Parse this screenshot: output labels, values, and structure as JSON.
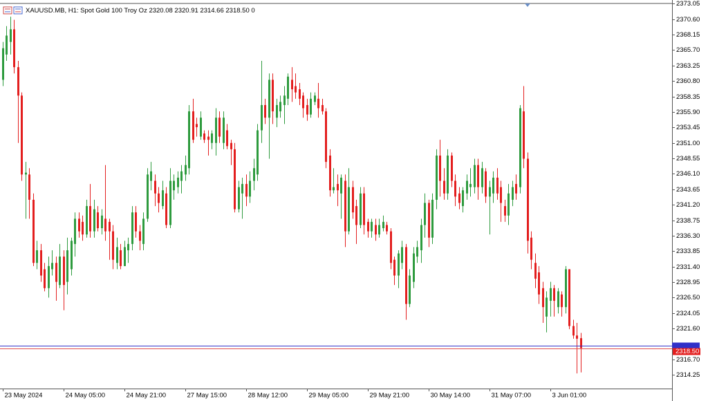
{
  "chart_data": {
    "type": "candlestick",
    "info": "XAUUSD.MB, H1:  Spot Gold 100 Troy Oz  2320.08 2320.91 2314.66 2318.50  0",
    "up_color": "#2e9b3e",
    "down_color": "#e31e1e",
    "ylim": [
      2312.1,
      2373.2
    ],
    "yticks": [
      2373.05,
      {
        "value": 2370.6,
        "label": "2370.60"
      },
      2368.15,
      {
        "value": 2365.7,
        "label": "2365.70"
      },
      2363.25,
      {
        "value": 2360.8,
        "label": "2360.80"
      },
      2358.35,
      {
        "value": 2355.9,
        "label": "2355.90"
      },
      2353.45,
      {
        "value": 2351,
        "label": "2351.00"
      },
      2348.55,
      {
        "value": 2346.1,
        "label": "2346.10"
      },
      2343.65,
      {
        "value": 2341.2,
        "label": "2341.20"
      },
      2338.75,
      {
        "value": 2336.3,
        "label": "2336.30"
      },
      2333.85,
      {
        "value": 2331.4,
        "label": "2331.40"
      },
      2328.95,
      {
        "value": 2326.5,
        "label": "2326.50"
      },
      2324.05,
      {
        "value": 2321.6,
        "label": "2321.60"
      },
      {
        "value": 2316.7,
        "label": "2316.70"
      },
      2314.25
    ],
    "bid": {
      "value": 2318.5,
      "label": "2318.50"
    },
    "ask": 2318.85,
    "categories": [
      "23 May 2024",
      null,
      null,
      null,
      null,
      null,
      null,
      null,
      null,
      null,
      null,
      null,
      null,
      null,
      null,
      null,
      "24 May 05:00",
      null,
      null,
      null,
      null,
      null,
      null,
      null,
      null,
      null,
      null,
      null,
      null,
      null,
      null,
      null,
      "24 May 21:00",
      null,
      null,
      null,
      null,
      null,
      null,
      null,
      null,
      null,
      null,
      null,
      null,
      null,
      null,
      null,
      "27 May 15:00",
      null,
      null,
      null,
      null,
      null,
      null,
      null,
      null,
      null,
      null,
      null,
      null,
      null,
      null,
      null,
      "28 May 12:00",
      null,
      null,
      null,
      null,
      null,
      null,
      null,
      null,
      null,
      null,
      null,
      null,
      null,
      null,
      null,
      "29 May 05:00",
      null,
      null,
      null,
      null,
      null,
      null,
      null,
      null,
      null,
      null,
      null,
      null,
      null,
      null,
      null,
      "29 May 21:00",
      null,
      null,
      null,
      null,
      null,
      null,
      null,
      null,
      null,
      null,
      null,
      null,
      null,
      null,
      null,
      "30 May 14:00",
      null,
      null,
      null,
      null,
      null,
      null,
      null,
      null,
      null,
      null,
      null,
      null,
      null,
      null,
      null,
      "31 May 07:00",
      null,
      null,
      null,
      null,
      null,
      null,
      null,
      null,
      null,
      null,
      null,
      null,
      null,
      null,
      null,
      "3 Jun 01:00",
      null,
      null,
      null,
      null,
      null,
      null,
      null,
      null
    ],
    "open": [
      2361,
      2365,
      2367,
      2369,
      2363,
      2358.5,
      2346,
      2346,
      2342,
      2332,
      2334,
      2331,
      2328,
      2331,
      2332,
      2328.5,
      2333,
      2329,
      2331,
      2335,
      2339,
      2338.5,
      2336.5,
      2341,
      2337,
      2340,
      2337.5,
      2339,
      2338.5,
      2337,
      2332,
      2334,
      2331.5,
      2334,
      2335,
      2340,
      2337,
      2335,
      2339,
      2345,
      2345,
      2343,
      2341,
      2343,
      2338,
      2343.5,
      2344,
      2345,
      2346,
      2347,
      2356,
      2354,
      2352,
      2352.5,
      2352,
      2351,
      2351,
      2355,
      2351,
      2353,
      2351,
      2350,
      2340.5,
      2343,
      2344.5,
      2342.5,
      2345,
      2346,
      2353,
      2357,
      2355,
      2361,
      2355,
      2356,
      2357,
      2358,
      2361,
      2360,
      2359.5,
      2358.5,
      2357,
      2355.5,
      2357.5,
      2358,
      2357,
      2356,
      2349,
      2343.5,
      2344.5,
      2343,
      2345,
      2337,
      2344,
      2341,
      2338,
      2343,
      2338.5,
      2337,
      2338,
      2336.5,
      2337.5,
      2338,
      2337,
      2332.5,
      2330,
      2332,
      2334.5,
      2325.5,
      2329,
      2333,
      2334,
      2338,
      2341.5,
      2336,
      2342,
      2349,
      2345,
      2343,
      2349,
      2345,
      2343,
      2341,
      2343,
      2344,
      2344,
      2347.5,
      2344,
      2346.5,
      2342.5,
      2343,
      2345.5,
      2344,
      2341,
      2339.5,
      2342,
      2344.5,
      2344,
      2356,
      2348.5,
      2336,
      2332,
      2330.5,
      2328,
      2323.5,
      2326,
      2328,
      2325,
      2327,
      2325,
      2331,
      2322,
      2320.5,
      2320.08
    ],
    "high": [
      2367,
      2369.5,
      2371,
      2370.5,
      2364,
      2359,
      2348,
      2347,
      2343,
      2335.5,
      2335,
      2332,
      2333,
      2334,
      2333,
      2335,
      2334,
      2336,
      2336,
      2340,
      2340,
      2339.5,
      2342,
      2344.5,
      2342,
      2341,
      2340.5,
      2347.5,
      2339,
      2338,
      2336,
      2335,
      2335.5,
      2336,
      2341,
      2341,
      2338,
      2340,
      2347,
      2348,
      2346,
      2344,
      2345,
      2344,
      2347,
      2346,
      2346.5,
      2347.5,
      2349,
      2357,
      2358,
      2355,
      2356,
      2353,
      2353,
      2353,
      2356.5,
      2356,
      2356,
      2354,
      2351.5,
      2351,
      2345,
      2345.5,
      2346,
      2346.5,
      2348.5,
      2354,
      2364,
      2358,
      2362,
      2362,
      2358,
      2358.5,
      2360,
      2362,
      2363,
      2362,
      2360.5,
      2359,
      2358,
      2359,
      2359,
      2360.5,
      2358,
      2356.5,
      2350,
      2347,
      2346,
      2346,
      2346,
      2347,
      2345,
      2342,
      2344,
      2344,
      2339,
      2339,
      2339,
      2339,
      2339.5,
      2338.5,
      2337.5,
      2333,
      2334,
      2335.5,
      2335,
      2331,
      2334.5,
      2335.5,
      2339,
      2343,
      2342,
      2343,
      2350,
      2351.5,
      2347,
      2350,
      2349.5,
      2346,
      2344,
      2344,
      2346,
      2347,
      2348.5,
      2348.5,
      2348,
      2347,
      2345,
      2346.5,
      2347,
      2345,
      2342,
      2344.5,
      2345,
      2346,
      2357,
      2360,
      2349.5,
      2337,
      2333.5,
      2331.5,
      2329,
      2327.5,
      2329,
      2328.5,
      2328,
      2327.5,
      2331.5,
      2331,
      2323,
      2322.5,
      2320.91
    ],
    "low": [
      2360,
      2364,
      2365,
      2362,
      2351,
      2345,
      2339,
      2339,
      2331.5,
      2331,
      2329,
      2327.5,
      2326.5,
      2330,
      2326,
      2328,
      2324.5,
      2327,
      2330,
      2333,
      2336,
      2335.5,
      2336,
      2336,
      2336,
      2337,
      2336.5,
      2335.5,
      2332.5,
      2331,
      2331,
      2331,
      2331.5,
      2332,
      2334,
      2336,
      2334,
      2334,
      2338.5,
      2343.5,
      2341,
      2340,
      2340.5,
      2337.5,
      2337.5,
      2342,
      2343,
      2343,
      2345,
      2346,
      2351,
      2352,
      2351.5,
      2351,
      2349,
      2350,
      2349,
      2351,
      2350,
      2350,
      2347.5,
      2340,
      2340,
      2339,
      2341,
      2341.5,
      2343.5,
      2345,
      2351,
      2354,
      2348.5,
      2354,
      2353.5,
      2355,
      2354,
      2357,
      2357.5,
      2358,
      2357,
      2355,
      2354.5,
      2355,
      2357,
      2355,
      2355.5,
      2347,
      2342.5,
      2343,
      2341,
      2339,
      2334.5,
      2336.5,
      2339,
      2335,
      2337.5,
      2336.5,
      2336,
      2336,
      2335.5,
      2336,
      2337,
      2336.5,
      2331,
      2328.5,
      2328,
      2331,
      2323,
      2325,
      2328,
      2332,
      2332,
      2336,
      2334.5,
      2335,
      2340.5,
      2342.5,
      2342,
      2342,
      2344,
      2341,
      2340.5,
      2340,
      2342,
      2342.5,
      2343,
      2342,
      2343,
      2341.5,
      2336.5,
      2341.5,
      2342,
      2338.5,
      2338.5,
      2338,
      2341,
      2342,
      2343,
      2347,
      2333.5,
      2331,
      2328,
      2325.5,
      2322.5,
      2321,
      2323.5,
      2323.5,
      2324,
      2323.5,
      2324,
      2321.5,
      2320,
      2314.5,
      2314.66
    ],
    "close": [
      2366,
      2368,
      2369,
      2363,
      2358.5,
      2346,
      2346.3,
      2342,
      2332,
      2334,
      2330,
      2328,
      2331.5,
      2332,
      2329,
      2333,
      2328.5,
      2334,
      2335.5,
      2339,
      2337,
      2336.5,
      2341,
      2337,
      2340.5,
      2337.5,
      2339.5,
      2337,
      2337,
      2332.5,
      2334.5,
      2331.5,
      2334.5,
      2335,
      2340,
      2337,
      2335.5,
      2339,
      2346,
      2346.5,
      2343,
      2341.5,
      2343.5,
      2338,
      2345,
      2345,
      2345.5,
      2346.5,
      2347.5,
      2356,
      2351.5,
      2353.5,
      2355,
      2351.5,
      2351.5,
      2352.5,
      2355,
      2352,
      2355,
      2350.5,
      2350,
      2340.5,
      2344,
      2344.5,
      2342.5,
      2345,
      2347,
      2353,
      2357,
      2355,
      2361,
      2356,
      2357,
      2357.5,
      2358.5,
      2361.5,
      2359.5,
      2359,
      2358,
      2356.5,
      2355.5,
      2358,
      2358.5,
      2356.5,
      2356,
      2348,
      2343.5,
      2344,
      2343.5,
      2345.5,
      2337,
      2344,
      2340,
      2338,
      2343,
      2338,
      2337,
      2338.5,
      2336.5,
      2338,
      2338.5,
      2337,
      2332,
      2330,
      2333.5,
      2334.5,
      2325.5,
      2330,
      2333.5,
      2334.5,
      2338,
      2341.5,
      2336,
      2342,
      2349,
      2345,
      2343,
      2349,
      2345,
      2342.5,
      2341.5,
      2343.5,
      2345,
      2344.5,
      2347.5,
      2344,
      2347,
      2342.5,
      2344,
      2345.5,
      2343,
      2341.5,
      2339.5,
      2343,
      2344,
      2343,
      2356.5,
      2348.5,
      2335.5,
      2332.5,
      2329.5,
      2327,
      2325,
      2326.5,
      2328,
      2326,
      2327.5,
      2325,
      2331,
      2322,
      2320.5,
      2320,
      2318.5
    ]
  }
}
